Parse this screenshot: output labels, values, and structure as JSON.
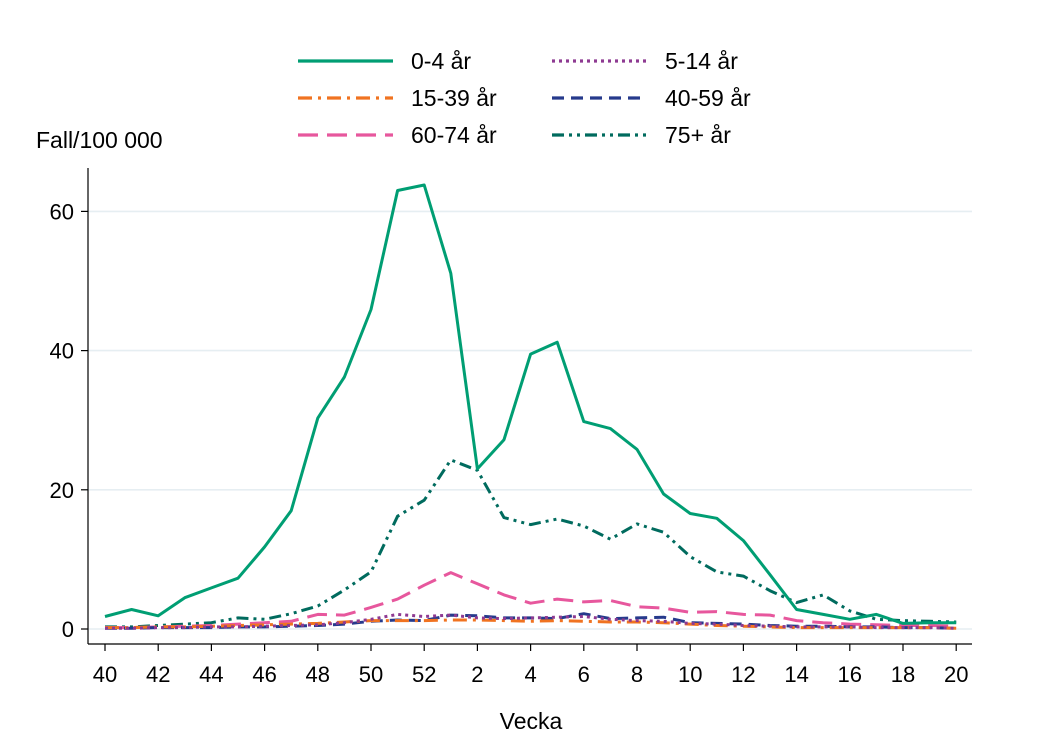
{
  "chart_data": {
    "type": "line",
    "title": "",
    "xlabel": "Vecka",
    "ylabel": "Fall/100 000",
    "ylim": [
      0,
      65
    ],
    "yticks": [
      0,
      20,
      40,
      60
    ],
    "grid": "horizontal",
    "legend_position": "top",
    "categories": [
      "40",
      "41",
      "42",
      "43",
      "44",
      "45",
      "46",
      "47",
      "48",
      "49",
      "50",
      "51",
      "52",
      "1",
      "2",
      "3",
      "4",
      "5",
      "6",
      "7",
      "8",
      "9",
      "10",
      "11",
      "12",
      "13",
      "14",
      "15",
      "16",
      "17",
      "18",
      "19",
      "20"
    ],
    "xtick_labels": [
      "40",
      "42",
      "44",
      "46",
      "48",
      "50",
      "52",
      "2",
      "4",
      "6",
      "8",
      "10",
      "12",
      "14",
      "16",
      "18",
      "20"
    ],
    "series": [
      {
        "name": "0-4 år",
        "color": "#009e73",
        "dash": "solid",
        "values": [
          1.8,
          2.8,
          1.9,
          4.5,
          5.9,
          7.3,
          11.8,
          17.0,
          30.3,
          36.2,
          45.9,
          63.0,
          63.8,
          51.1,
          23.0,
          27.2,
          39.5,
          41.2,
          29.8,
          28.8,
          25.8,
          19.4,
          16.6,
          15.9,
          12.7,
          7.8,
          2.8,
          2.1,
          1.4,
          2.1,
          0.8,
          0.9,
          0.9
        ]
      },
      {
        "name": "5-14 år",
        "color": "#8e3a92",
        "dash": "dot",
        "values": [
          0.1,
          0.1,
          0.2,
          0.2,
          0.3,
          0.3,
          0.4,
          0.5,
          0.6,
          0.9,
          1.4,
          2.1,
          1.8,
          2.0,
          1.6,
          1.5,
          1.6,
          1.7,
          1.8,
          1.4,
          1.2,
          1.1,
          0.8,
          0.7,
          0.5,
          0.4,
          0.3,
          0.3,
          0.3,
          0.2,
          0.2,
          0.2,
          0.1
        ]
      },
      {
        "name": "15-39 år",
        "color": "#f07321",
        "dash": "dashdot",
        "values": [
          0.2,
          0.2,
          0.3,
          0.3,
          0.4,
          0.5,
          0.6,
          0.7,
          0.8,
          1.0,
          1.2,
          1.2,
          1.2,
          1.3,
          1.3,
          1.2,
          1.1,
          1.2,
          1.1,
          1.0,
          1.0,
          0.9,
          0.7,
          0.5,
          0.4,
          0.3,
          0.2,
          0.2,
          0.2,
          0.2,
          0.2,
          0.2,
          0.1
        ]
      },
      {
        "name": "40-59 år",
        "color": "#263a8c",
        "dash": "dash",
        "values": [
          0.1,
          0.1,
          0.2,
          0.2,
          0.2,
          0.3,
          0.3,
          0.4,
          0.5,
          0.7,
          1.1,
          1.3,
          1.2,
          2.0,
          1.9,
          1.6,
          1.6,
          1.5,
          2.2,
          1.5,
          1.6,
          1.7,
          0.9,
          0.8,
          0.7,
          0.5,
          0.4,
          0.4,
          0.3,
          0.3,
          0.2,
          0.2,
          0.1
        ]
      },
      {
        "name": "60-74 år",
        "color": "#e7579d",
        "dash": "longdash",
        "values": [
          0.2,
          0.2,
          0.3,
          0.4,
          0.5,
          0.7,
          0.9,
          1.1,
          2.1,
          2.0,
          3.1,
          4.3,
          6.3,
          8.1,
          6.5,
          4.9,
          3.7,
          4.3,
          3.9,
          4.1,
          3.2,
          3.0,
          2.4,
          2.5,
          2.1,
          2.0,
          1.2,
          0.9,
          0.7,
          0.6,
          0.5,
          0.5,
          0.4
        ]
      },
      {
        "name": "75+ år",
        "color": "#006b5e",
        "dash": "dashdotdot",
        "values": [
          0.3,
          0.3,
          0.5,
          0.7,
          0.9,
          1.6,
          1.4,
          2.2,
          3.3,
          5.6,
          8.2,
          16.2,
          18.5,
          24.3,
          22.8,
          16.0,
          15.0,
          15.8,
          14.8,
          12.9,
          15.1,
          13.9,
          10.4,
          8.2,
          7.6,
          5.5,
          3.8,
          4.9,
          2.6,
          1.4,
          1.2,
          1.1,
          1.0
        ]
      }
    ]
  }
}
